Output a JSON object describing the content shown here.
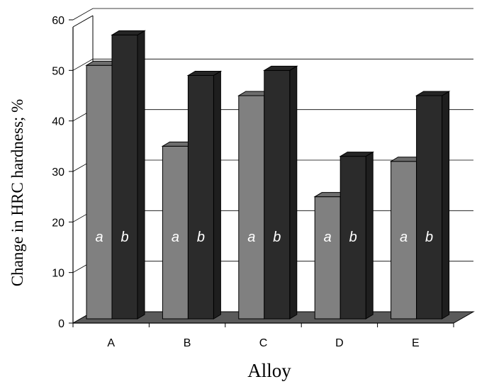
{
  "chart_data": {
    "type": "bar",
    "style": "3d-clustered-column",
    "categories": [
      "A",
      "B",
      "C",
      "D",
      "E"
    ],
    "series": [
      {
        "label": "a",
        "values": [
          51,
          35,
          45,
          25,
          32
        ],
        "color": "#808080"
      },
      {
        "label": "b",
        "values": [
          57,
          49,
          50,
          33,
          45
        ],
        "color": "#2b2b2b"
      }
    ],
    "xlabel": "Alloy",
    "ylabel": "Change in HRC hardness; %",
    "ylim": [
      0,
      60
    ],
    "yticks": [
      0,
      10,
      20,
      30,
      40,
      50,
      60
    ],
    "grid": true,
    "legend": "none"
  }
}
